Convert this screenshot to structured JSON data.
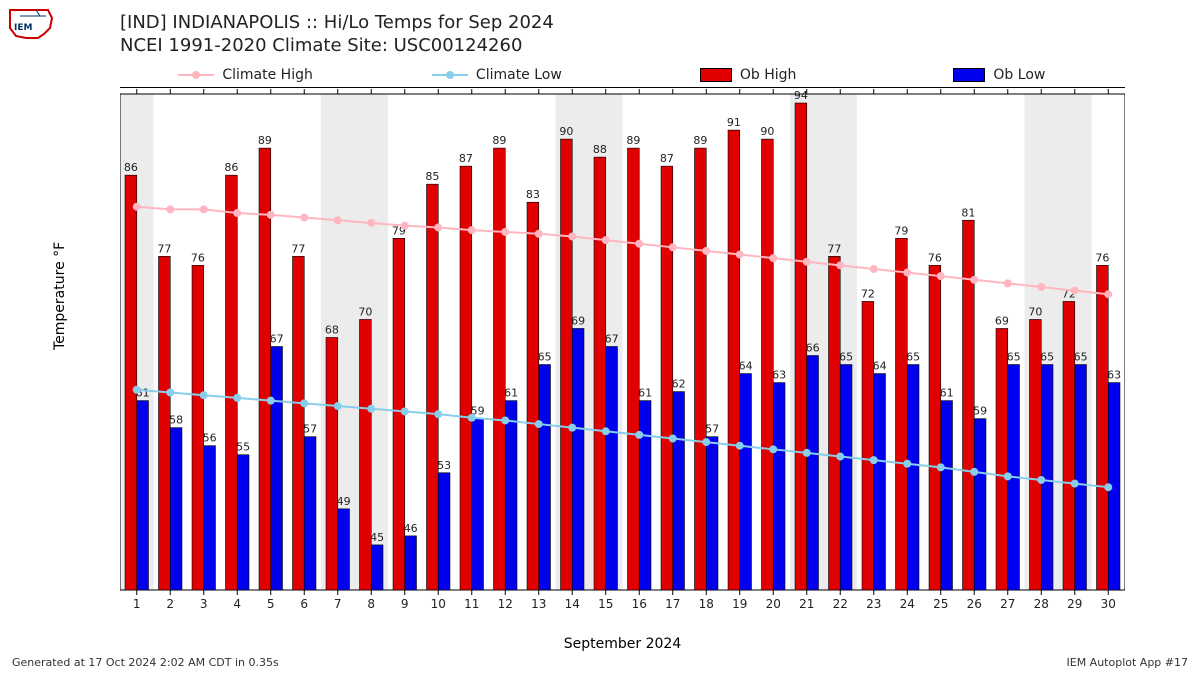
{
  "title_line1": "[IND] INDIANAPOLIS :: Hi/Lo Temps for Sep 2024",
  "title_line2": "NCEI 1991-2020 Climate Site: USC00124260",
  "ylabel": "Temperature °F",
  "xlabel": "September 2024",
  "footer_left": "Generated at 17 Oct 2024 2:02 AM CDT in 0.35s",
  "footer_right": "IEM Autoplot App #17",
  "legend": {
    "climate_high": "Climate High",
    "climate_low": "Climate Low",
    "ob_high": "Ob High",
    "ob_low": "Ob Low"
  },
  "colors": {
    "ob_high": "#e00000",
    "ob_low": "#0000ee",
    "climate_high_line": "#ffb6c1",
    "climate_low_line": "#87ceeb",
    "axis": "#000000",
    "weekend_band": "#ececec",
    "bar_stroke": "#000000",
    "text": "#222222",
    "bg": "#ffffff"
  },
  "chart": {
    "type": "bar+line",
    "ylim": [
      40,
      95
    ],
    "ytick_step": 10,
    "xlim": [
      0.5,
      30.5
    ],
    "bar_width": 0.35,
    "line_width": 2,
    "marker_radius": 4,
    "weekend_days": [
      1,
      7,
      8,
      14,
      15,
      21,
      22,
      28,
      29
    ],
    "days": [
      1,
      2,
      3,
      4,
      5,
      6,
      7,
      8,
      9,
      10,
      11,
      12,
      13,
      14,
      15,
      16,
      17,
      18,
      19,
      20,
      21,
      22,
      23,
      24,
      25,
      26,
      27,
      28,
      29,
      30
    ],
    "ob_high": [
      86,
      77,
      76,
      86,
      89,
      77,
      68,
      70,
      79,
      85,
      87,
      89,
      83,
      90,
      88,
      89,
      87,
      89,
      91,
      90,
      94,
      77,
      72,
      79,
      76,
      81,
      69,
      70,
      72,
      76
    ],
    "ob_low": [
      61,
      58,
      56,
      55,
      67,
      57,
      49,
      45,
      46,
      53,
      59,
      61,
      65,
      69,
      67,
      61,
      62,
      57,
      64,
      63,
      66,
      65,
      64,
      65,
      61,
      59,
      65,
      65,
      65,
      63
    ],
    "climate_high": [
      82.5,
      82.2,
      82.2,
      81.8,
      81.6,
      81.3,
      81.0,
      80.7,
      80.4,
      80.2,
      79.9,
      79.7,
      79.5,
      79.2,
      78.8,
      78.4,
      78.0,
      77.6,
      77.2,
      76.8,
      76.4,
      76.0,
      75.6,
      75.2,
      74.8,
      74.4,
      74.0,
      73.6,
      73.2,
      72.8
    ],
    "climate_low": [
      62.2,
      61.9,
      61.6,
      61.3,
      61.0,
      60.7,
      60.4,
      60.1,
      59.8,
      59.5,
      59.1,
      58.8,
      58.4,
      58.0,
      57.6,
      57.2,
      56.8,
      56.4,
      56.0,
      55.6,
      55.2,
      54.8,
      54.4,
      54.0,
      53.6,
      53.1,
      52.6,
      52.2,
      51.8,
      51.4
    ],
    "label_fontsize": 11,
    "tick_fontsize": 12
  }
}
